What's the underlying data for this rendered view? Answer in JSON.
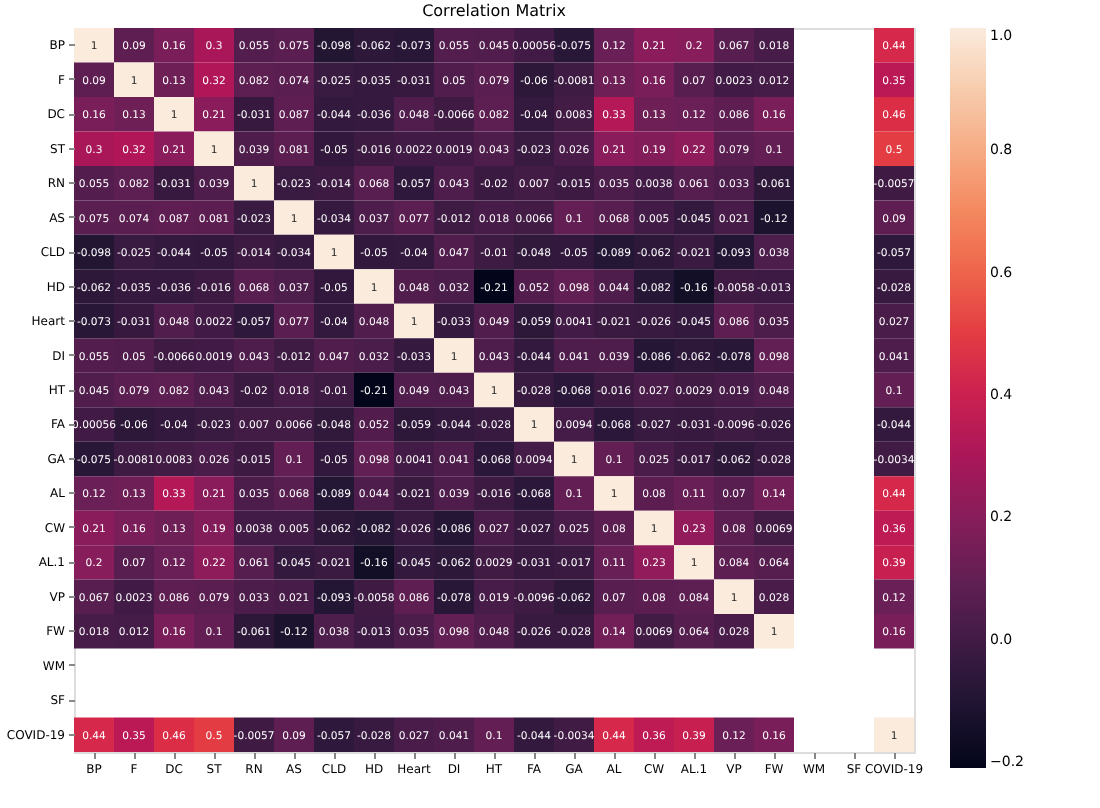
{
  "chart_data": {
    "type": "heatmap",
    "title": "Correlation Matrix",
    "categories": [
      "BP",
      "F",
      "DC",
      "ST",
      "RN",
      "AS",
      "CLD",
      "HD",
      "Heart",
      "DI",
      "HT",
      "FA",
      "GA",
      "AL",
      "CW",
      "AL.1",
      "VP",
      "FW",
      "WM",
      "SF",
      "COVID-19"
    ],
    "y_categories": [
      "BP",
      "F",
      "DC",
      "ST",
      "RN",
      "AS",
      "CLD",
      "HD",
      "Heart",
      "DI",
      "HT",
      "FA",
      "GA",
      "AL",
      "CW",
      "AL.1",
      "VP",
      "FW",
      "WM",
      "SF",
      "COVID-19"
    ],
    "cells": [
      [
        1,
        0.09,
        0.16,
        0.3,
        0.055,
        0.075,
        -0.098,
        -0.062,
        -0.073,
        0.055,
        0.045,
        0.00056,
        -0.075,
        0.12,
        0.21,
        0.2,
        0.067,
        0.018,
        null,
        null,
        0.44
      ],
      [
        0.09,
        1,
        0.13,
        0.32,
        0.082,
        0.074,
        -0.025,
        -0.035,
        -0.031,
        0.05,
        0.079,
        -0.06,
        -0.0081,
        0.13,
        0.16,
        0.07,
        0.0023,
        0.012,
        null,
        null,
        0.35
      ],
      [
        0.16,
        0.13,
        1,
        0.21,
        -0.031,
        0.087,
        -0.044,
        -0.036,
        0.048,
        -0.0066,
        0.082,
        -0.04,
        0.0083,
        0.33,
        0.13,
        0.12,
        0.086,
        0.16,
        null,
        null,
        0.46
      ],
      [
        0.3,
        0.32,
        0.21,
        1,
        0.039,
        0.081,
        -0.05,
        -0.016,
        0.0022,
        0.0019,
        0.043,
        -0.023,
        0.026,
        0.21,
        0.19,
        0.22,
        0.079,
        0.1,
        null,
        null,
        0.5
      ],
      [
        0.055,
        0.082,
        -0.031,
        0.039,
        1,
        -0.023,
        -0.014,
        0.068,
        -0.057,
        0.043,
        -0.02,
        0.007,
        -0.015,
        0.035,
        0.0038,
        0.061,
        0.033,
        -0.061,
        null,
        null,
        -0.0057
      ],
      [
        0.075,
        0.074,
        0.087,
        0.081,
        -0.023,
        1,
        -0.034,
        0.037,
        0.077,
        -0.012,
        0.018,
        0.0066,
        0.1,
        0.068,
        0.005,
        -0.045,
        0.021,
        -0.12,
        null,
        null,
        0.09
      ],
      [
        -0.098,
        -0.025,
        -0.044,
        -0.05,
        -0.014,
        -0.034,
        1,
        -0.05,
        -0.04,
        0.047,
        -0.01,
        -0.048,
        -0.05,
        -0.089,
        -0.062,
        -0.021,
        -0.093,
        0.038,
        null,
        null,
        -0.057
      ],
      [
        -0.062,
        -0.035,
        -0.036,
        -0.016,
        0.068,
        0.037,
        -0.05,
        1,
        0.048,
        0.032,
        -0.21,
        0.052,
        0.098,
        0.044,
        -0.082,
        -0.16,
        -0.0058,
        -0.013,
        null,
        null,
        -0.028
      ],
      [
        -0.073,
        -0.031,
        0.048,
        0.0022,
        -0.057,
        0.077,
        -0.04,
        0.048,
        1,
        -0.033,
        0.049,
        -0.059,
        0.0041,
        -0.021,
        -0.026,
        -0.045,
        0.086,
        0.035,
        null,
        null,
        0.027
      ],
      [
        0.055,
        0.05,
        -0.0066,
        0.0019,
        0.043,
        -0.012,
        0.047,
        0.032,
        -0.033,
        1,
        0.043,
        -0.044,
        0.041,
        0.039,
        -0.086,
        -0.062,
        -0.078,
        0.098,
        null,
        null,
        0.041
      ],
      [
        0.045,
        0.079,
        0.082,
        0.043,
        -0.02,
        0.018,
        -0.01,
        -0.21,
        0.049,
        0.043,
        1,
        -0.028,
        -0.068,
        -0.016,
        0.027,
        0.0029,
        0.019,
        0.048,
        null,
        null,
        0.1
      ],
      [
        0.00056,
        -0.06,
        -0.04,
        -0.023,
        0.007,
        0.0066,
        -0.048,
        0.052,
        -0.059,
        -0.044,
        -0.028,
        1,
        0.0094,
        -0.068,
        -0.027,
        -0.031,
        -0.0096,
        -0.026,
        null,
        null,
        -0.044
      ],
      [
        -0.075,
        -0.0081,
        0.0083,
        0.026,
        -0.015,
        0.1,
        -0.05,
        0.098,
        0.0041,
        0.041,
        -0.068,
        0.0094,
        1,
        0.1,
        0.025,
        -0.017,
        -0.062,
        -0.028,
        null,
        null,
        -0.0034
      ],
      [
        0.12,
        0.13,
        0.33,
        0.21,
        0.035,
        0.068,
        -0.089,
        0.044,
        -0.021,
        0.039,
        -0.016,
        -0.068,
        0.1,
        1,
        0.08,
        0.11,
        0.07,
        0.14,
        null,
        null,
        0.44
      ],
      [
        0.21,
        0.16,
        0.13,
        0.19,
        0.0038,
        0.005,
        -0.062,
        -0.082,
        -0.026,
        -0.086,
        0.027,
        -0.027,
        0.025,
        0.08,
        1,
        0.23,
        0.08,
        0.0069,
        null,
        null,
        0.36
      ],
      [
        0.2,
        0.07,
        0.12,
        0.22,
        0.061,
        -0.045,
        -0.021,
        -0.16,
        -0.045,
        -0.062,
        0.0029,
        -0.031,
        -0.017,
        0.11,
        0.23,
        1,
        0.084,
        0.064,
        null,
        null,
        0.39
      ],
      [
        0.067,
        0.0023,
        0.086,
        0.079,
        0.033,
        0.021,
        -0.093,
        -0.0058,
        0.086,
        -0.078,
        0.019,
        -0.0096,
        -0.062,
        0.07,
        0.08,
        0.084,
        1,
        0.028,
        null,
        null,
        0.12
      ],
      [
        0.018,
        0.012,
        0.16,
        0.1,
        -0.061,
        -0.12,
        0.038,
        -0.013,
        0.035,
        0.098,
        0.048,
        -0.026,
        -0.028,
        0.14,
        0.0069,
        0.064,
        0.028,
        1,
        null,
        null,
        0.16
      ],
      [
        null,
        null,
        null,
        null,
        null,
        null,
        null,
        null,
        null,
        null,
        null,
        null,
        null,
        null,
        null,
        null,
        null,
        null,
        null,
        null,
        null
      ],
      [
        null,
        null,
        null,
        null,
        null,
        null,
        null,
        null,
        null,
        null,
        null,
        null,
        null,
        null,
        null,
        null,
        null,
        null,
        null,
        null,
        null
      ],
      [
        0.44,
        0.35,
        0.46,
        0.5,
        -0.0057,
        0.09,
        -0.057,
        -0.028,
        0.027,
        0.041,
        0.1,
        -0.044,
        -0.0034,
        0.44,
        0.36,
        0.39,
        0.12,
        0.16,
        null,
        null,
        1
      ]
    ],
    "clim": [
      -0.21,
      1
    ],
    "cticks": [
      {
        "value": -0.2,
        "label": "−0.2"
      },
      {
        "value": 0,
        "label": "0.0"
      },
      {
        "value": 0.2,
        "label": "0.2"
      },
      {
        "value": 0.4,
        "label": "0.4"
      },
      {
        "value": 0.6,
        "label": "0.6"
      },
      {
        "value": 0.8,
        "label": "0.8"
      },
      {
        "value": 1,
        "label": "1.0"
      }
    ],
    "data_labels": true
  }
}
